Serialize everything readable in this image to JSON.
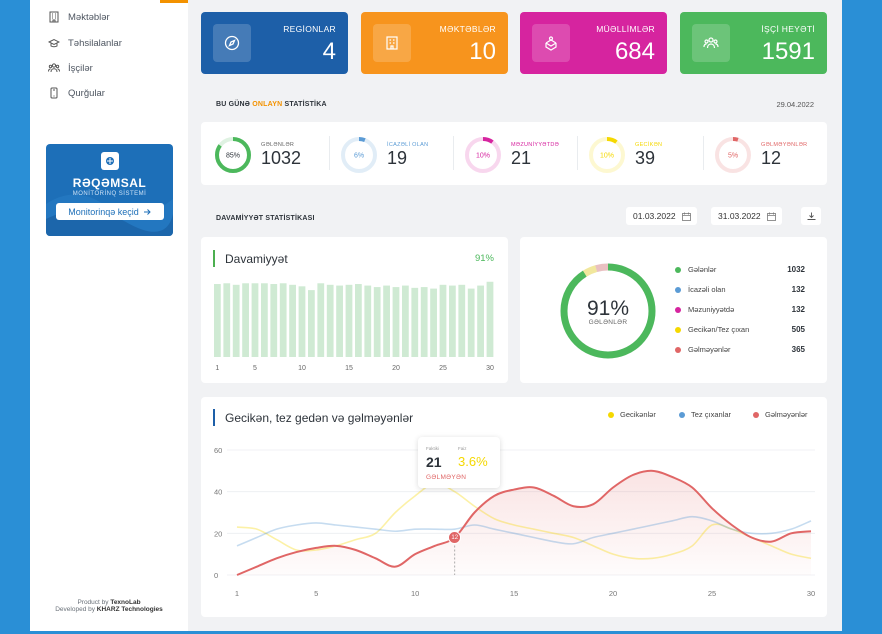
{
  "sidebar": {
    "items": [
      {
        "label": "Məktəblər",
        "icon": "building-icon"
      },
      {
        "label": "Təhsilalanlar",
        "icon": "graduation-cap-icon"
      },
      {
        "label": "İşçilər",
        "icon": "people-icon"
      },
      {
        "label": "Qurğular",
        "icon": "device-icon"
      }
    ],
    "promo": {
      "title": "RƏQƏMSAL",
      "subtitle": "MONİTORİNQ SİSTEMİ",
      "button": "Monitorinqə keçid",
      "button_icon": "arrow-right-icon"
    },
    "credit_line1_prefix": "Product by",
    "credit_line1_brand": "TexnoLab",
    "credit_line2_prefix": "Developed by",
    "credit_line2_brand": "KHARZ Technologies"
  },
  "stats": [
    {
      "label": "REGİONLAR",
      "value": "4",
      "color": "#1d5fa8",
      "icon": "compass-icon"
    },
    {
      "label": "MƏKTƏBLƏR",
      "value": "10",
      "color": "#f7941d",
      "icon": "school-icon"
    },
    {
      "label": "MÜƏLLİMLƏR",
      "value": "684",
      "color": "#d6249f",
      "icon": "teacher-icon"
    },
    {
      "label": "İŞÇİ HEYƏTİ",
      "value": "1591",
      "color": "#4cb85c",
      "icon": "staff-icon"
    }
  ],
  "online": {
    "label_prefix": "BU GÜNƏ",
    "label_highlight": "ONLAYN",
    "label_suffix": "STATİSTİKA",
    "date": "29.04.2022",
    "items": [
      {
        "name": "GƏLƏNLƏR",
        "value": "1032",
        "percent": "85%",
        "fraction": 0.85,
        "color": "#4cb85c"
      },
      {
        "name": "İCAZƏLİ OLAN",
        "value": "19",
        "percent": "6%",
        "fraction": 0.06,
        "color": "#5b9bd5"
      },
      {
        "name": "MƏZUNİYYƏTDƏ",
        "value": "21",
        "percent": "10%",
        "fraction": 0.1,
        "color": "#d6249f"
      },
      {
        "name": "GECİKƏN",
        "value": "39",
        "percent": "10%",
        "fraction": 0.1,
        "color": "#f5d800"
      },
      {
        "name": "GƏLMƏYƏNLƏR",
        "value": "12",
        "percent": "5%",
        "fraction": 0.05,
        "color": "#e06666"
      }
    ]
  },
  "attendance": {
    "section_label": "DAVAMİYYƏT STATİSTİKASI",
    "date_from": "01.03.2022",
    "date_to": "31.03.2022",
    "calendar_icon": "calendar-icon",
    "download_icon": "download-icon",
    "bar_panel_title": "Davamiyyət",
    "bar_panel_value": "91%",
    "donut_center": "91%",
    "donut_sub": "GƏLƏNLƏR",
    "legend": [
      {
        "name": "Gələnlər",
        "value": "1032",
        "color": "#4cb85c"
      },
      {
        "name": "İcazəli olan",
        "value": "132",
        "color": "#5b9bd5"
      },
      {
        "name": "Məzuniyyətdə",
        "value": "132",
        "color": "#d6249f"
      },
      {
        "name": "Gecikən/Tez çıxan",
        "value": "505",
        "color": "#f5d800"
      },
      {
        "name": "Gəlməyənlər",
        "value": "365",
        "color": "#e06666"
      }
    ]
  },
  "late_panel": {
    "title": "Gecikən, tez gedən və gəlməyənlər",
    "legend": [
      {
        "name": "Gecikənlər",
        "color": "#f5d800"
      },
      {
        "name": "Tez çıxanlar",
        "color": "#5b9bd5"
      },
      {
        "name": "Gəlməyənlər",
        "color": "#e06666"
      }
    ],
    "tooltip": {
      "label_a": "Faktiki",
      "value_a": "21",
      "label_b": "Faiz",
      "value_b": "3.6%",
      "caption": "GƏLMƏYƏN",
      "marker": "12"
    }
  },
  "chart_data": [
    {
      "type": "bar",
      "x": [
        1,
        2,
        3,
        4,
        5,
        6,
        7,
        8,
        9,
        10,
        11,
        12,
        13,
        14,
        15,
        16,
        17,
        18,
        19,
        20,
        21,
        22,
        23,
        24,
        25,
        26,
        27,
        28,
        29,
        30
      ],
      "x_ticks": [
        "1",
        "5",
        "10",
        "15",
        "20",
        "25",
        "30"
      ],
      "values": [
        96,
        97,
        95,
        97,
        97,
        97,
        96,
        97,
        95,
        93,
        88,
        97,
        95,
        94,
        95,
        96,
        94,
        92,
        94,
        92,
        94,
        91,
        92,
        90,
        95,
        94,
        95,
        90,
        94,
        99
      ],
      "ylim": [
        0,
        100
      ]
    },
    {
      "type": "pie",
      "labels": [
        "Gələnlər",
        "İcazəli olan",
        "Məzuniyyətdə",
        "Gecikən/Tez çıxan",
        "Gəlməyənlər"
      ],
      "values": [
        1032,
        132,
        132,
        505,
        365
      ],
      "display_fractions": [
        0.91,
        0.0,
        0.0,
        0.045,
        0.045
      ],
      "center_label": "91%"
    },
    {
      "type": "line",
      "x": [
        1,
        2,
        3,
        4,
        5,
        6,
        7,
        8,
        9,
        10,
        11,
        12,
        13,
        14,
        15,
        16,
        17,
        18,
        19,
        20,
        21,
        22,
        23,
        24,
        25,
        26,
        27,
        28,
        29,
        30
      ],
      "x_ticks": [
        "1",
        "5",
        "10",
        "15",
        "20",
        "25",
        "30"
      ],
      "y_ticks": [
        "0",
        "20",
        "40",
        "60"
      ],
      "ylim": [
        0,
        60
      ],
      "series": [
        {
          "name": "Gecikənlər",
          "color": "#f5d800",
          "values": [
            23,
            22,
            17,
            12,
            12,
            14,
            17,
            20,
            30,
            38,
            44,
            40,
            33,
            27,
            24,
            22,
            20,
            18,
            14,
            10,
            8,
            8,
            10,
            14,
            24,
            22,
            18,
            14,
            10,
            8
          ]
        },
        {
          "name": "Tez çıxanlar",
          "color": "#5b9bd5",
          "values": [
            14,
            18,
            22,
            24,
            25,
            24,
            23,
            22,
            21,
            22,
            22,
            22,
            24,
            22,
            20,
            18,
            16,
            15,
            18,
            20,
            22,
            24,
            26,
            28,
            26,
            22,
            20,
            20,
            22,
            26
          ]
        },
        {
          "name": "Gəlməyənlər",
          "color": "#e06666",
          "values": [
            0,
            4,
            8,
            11,
            13,
            14,
            12,
            8,
            4,
            10,
            14,
            18,
            30,
            38,
            41,
            42,
            38,
            33,
            34,
            42,
            48,
            50,
            47,
            42,
            32,
            24,
            18,
            16,
            20,
            21
          ]
        }
      ]
    }
  ]
}
